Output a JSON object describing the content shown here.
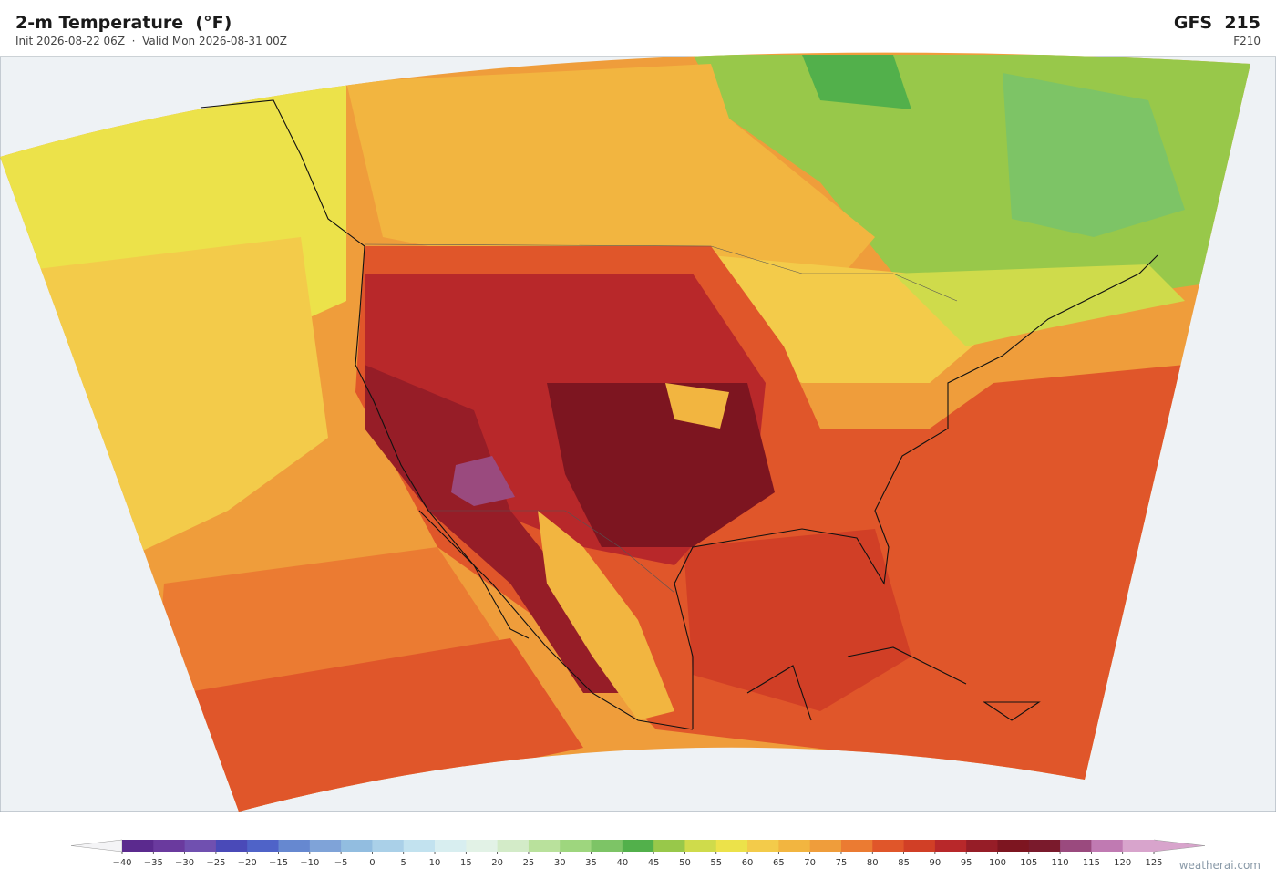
{
  "header": {
    "title": "2-m Temperature  (°F)",
    "subtitle": "Init 2026-08-22 06Z  ·  Valid Mon 2026-08-31 00Z",
    "model": "GFS  215",
    "forecast_hour": "F210"
  },
  "colorbar": {
    "ticks": [
      {
        "value": -40,
        "label": "−40"
      },
      {
        "value": -35,
        "label": "−35"
      },
      {
        "value": -30,
        "label": "−30"
      },
      {
        "value": -25,
        "label": "−25"
      },
      {
        "value": -20,
        "label": "−20"
      },
      {
        "value": -15,
        "label": "−15"
      },
      {
        "value": -10,
        "label": "−10"
      },
      {
        "value": -5,
        "label": "−5"
      },
      0,
      5,
      10,
      15,
      20,
      25,
      30,
      35,
      40,
      45,
      50,
      55,
      60,
      65,
      70,
      75,
      80,
      85,
      90,
      95,
      100,
      105,
      110,
      115,
      120,
      125
    ],
    "colors": [
      "#5b2a8e",
      "#6a3a9e",
      "#7050b0",
      "#4a4ab8",
      "#4f63c8",
      "#6688d0",
      "#7fa3d8",
      "#92bde0",
      "#aad0e8",
      "#c2e2ef",
      "#d8eef0",
      "#e2f2e6",
      "#d3ebc8",
      "#b9e19c",
      "#9ed67e",
      "#7dc466",
      "#52b04b",
      "#98c84a",
      "#cfdb4b",
      "#ece24a",
      "#f3cb4a",
      "#f2b540",
      "#ef9d3b",
      "#eb7b32",
      "#e0562a",
      "#d13f26",
      "#b8282a",
      "#961d27",
      "#7d1520",
      "#7a1a2c",
      "#9a4a7e",
      "#c07ab2",
      "#d8a4cc"
    ],
    "under_color": "#f4f4f6",
    "over_color": "#d8a4cc"
  },
  "footer": {
    "credit": "weatherai.com"
  }
}
